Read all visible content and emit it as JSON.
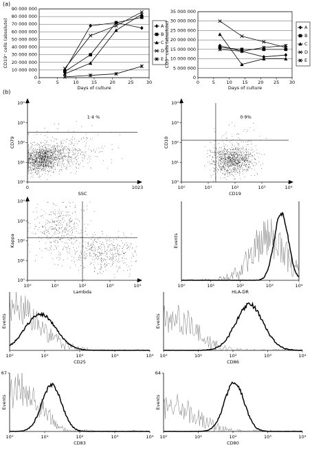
{
  "figure": {
    "panel_a_label": "(a)",
    "panel_b_label": "(b)"
  },
  "chart_data": [
    {
      "type": "line",
      "y_label": "CD19⁺ cells (absolute)",
      "x_label": "Days of culture",
      "x": [
        7,
        14,
        21,
        28
      ],
      "xlim": [
        0,
        30
      ],
      "xticks": [
        0,
        5,
        10,
        15,
        20,
        25,
        30
      ],
      "ylim": [
        0,
        90000000
      ],
      "yticks": [
        0,
        {
          "value": 10000000,
          "label": "10 000 000"
        },
        {
          "value": 20000000,
          "label": "20 000 000"
        },
        {
          "value": 30000000,
          "label": "30 000 000"
        },
        {
          "value": 40000000,
          "label": "40 000 000"
        },
        {
          "value": 50000000,
          "label": "50 000 000"
        },
        {
          "value": 60000000,
          "label": "60 000 000"
        },
        {
          "value": 70000000,
          "label": "70 000 000"
        },
        {
          "value": 80000000,
          "label": "80 000 000"
        },
        {
          "value": 90000000,
          "label": "90 000 000"
        }
      ],
      "grid": true,
      "series": [
        {
          "name": "A",
          "color": "#000000",
          "marker": "diamond",
          "values": [
            10000000,
            68000000,
            72000000,
            65000000
          ]
        },
        {
          "name": "B",
          "color": "#000000",
          "marker": "square",
          "values": [
            8000000,
            30000000,
            72000000,
            79000000
          ]
        },
        {
          "name": "C",
          "color": "#000000",
          "marker": "triangle",
          "values": [
            5000000,
            19000000,
            62000000,
            83000000
          ]
        },
        {
          "name": "D",
          "color": "#000000",
          "marker": "x",
          "values": [
            12000000,
            55000000,
            68000000,
            86000000
          ]
        },
        {
          "name": "E",
          "color": "#000000",
          "marker": "star",
          "values": [
            1000000,
            3000000,
            5000000,
            15000000
          ]
        }
      ]
    },
    {
      "type": "line",
      "y_label": "CD3⁺ cells (absolute)",
      "x_label": "Days of culture",
      "x": [
        7,
        14,
        21,
        28
      ],
      "xlim": [
        0,
        30
      ],
      "xticks": [
        0,
        5,
        10,
        15,
        20,
        25,
        30
      ],
      "ylim": [
        0,
        35000000
      ],
      "yticks": [
        0,
        {
          "value": 5000000,
          "label": "5 000 000"
        },
        {
          "value": 10000000,
          "label": "10 000 000"
        },
        {
          "value": 15000000,
          "label": "15 000 000"
        },
        {
          "value": 20000000,
          "label": "20 000 000"
        },
        {
          "value": 25000000,
          "label": "25 000 000"
        },
        {
          "value": 30000000,
          "label": "30 000 000"
        },
        {
          "value": 35000000,
          "label": "35 000 000"
        }
      ],
      "grid": true,
      "series": [
        {
          "name": "A",
          "color": "#000000",
          "marker": "diamond",
          "values": [
            17000000,
            14000000,
            11000000,
            12000000
          ]
        },
        {
          "name": "B",
          "color": "#000000",
          "marker": "square",
          "values": [
            16000000,
            15000000,
            15000000,
            15000000
          ]
        },
        {
          "name": "C",
          "color": "#000000",
          "marker": "triangle",
          "values": [
            23000000,
            7000000,
            10000000,
            10000000
          ]
        },
        {
          "name": "D",
          "color": "#000000",
          "marker": "x",
          "values": [
            30000000,
            22000000,
            19000000,
            16000000
          ]
        },
        {
          "name": "E",
          "color": "#000000",
          "marker": "star",
          "values": [
            15000000,
            14000000,
            16000000,
            17000000
          ]
        }
      ]
    }
  ],
  "flow_plots": [
    {
      "kind": "dot",
      "y_label": "CD79",
      "x_label": "SSC",
      "x_ticks": [
        "0",
        "1023"
      ],
      "y_ticks": [
        "10⁰",
        "10¹",
        "10²",
        "10³",
        "10⁴"
      ],
      "annotation": "1·4 %"
    },
    {
      "kind": "dot",
      "y_label": "CD10",
      "x_label": "CD19",
      "x_ticks": [
        "10⁰",
        "10¹",
        "10²",
        "10³",
        "10⁴"
      ],
      "y_ticks": [
        "10⁰",
        "10¹",
        "10²",
        "10³",
        "10⁴"
      ],
      "annotation": "0·9%"
    },
    {
      "kind": "dot",
      "y_label": "Kappa",
      "x_label": "Lambda",
      "x_ticks": [
        "10⁰",
        "10¹",
        "10²",
        "10³",
        "10⁴"
      ],
      "y_ticks": [
        "10⁰",
        "10¹",
        "10²",
        "10³",
        "10⁴"
      ]
    },
    {
      "kind": "histogram",
      "y_label": "Events",
      "x_label": "HLA-DR",
      "x_ticks": [
        "10⁰",
        "10¹",
        "10²",
        "10³",
        "10⁴"
      ]
    },
    {
      "kind": "histogram",
      "y_label": "Events",
      "x_label": "CD25",
      "x_ticks": [
        "10⁰",
        "10¹",
        "10²",
        "10³",
        "10⁴"
      ]
    },
    {
      "kind": "histogram",
      "y_label": "Events",
      "x_label": "CD86",
      "x_ticks": [
        "10⁰",
        "10¹",
        "10²",
        "10³",
        "10⁴"
      ]
    },
    {
      "kind": "histogram",
      "y_label": "Events",
      "x_label": "CD83",
      "x_ticks": [
        "10⁰",
        "10¹",
        "10²",
        "10³",
        "10⁴"
      ],
      "y_ticks": [
        "67"
      ]
    },
    {
      "kind": "histogram",
      "y_label": "Events",
      "x_label": "CD80",
      "x_ticks": [
        "10⁰",
        "10¹",
        "10²",
        "10³",
        "10⁴"
      ],
      "y_ticks": [
        "64"
      ]
    }
  ]
}
